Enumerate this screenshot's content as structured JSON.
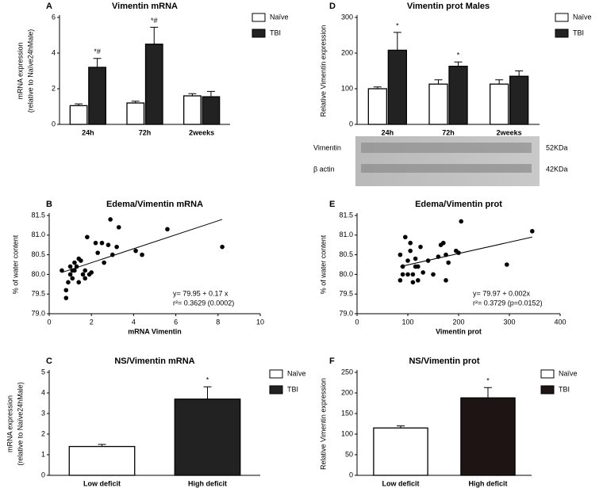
{
  "chart_data": [
    {
      "type": "bar",
      "label": "A",
      "title": "Vimentin mRNA",
      "ylabel": [
        "mRNA expression",
        "(relative to Naïve24hMale)"
      ],
      "categories": [
        "24h",
        "72h",
        "2weeks"
      ],
      "ylim": [
        0,
        6
      ],
      "yticks": [
        0,
        2,
        4,
        6
      ],
      "series": [
        {
          "name": "Naïve",
          "color": "#ffffff",
          "values": [
            1.05,
            1.2,
            1.6
          ],
          "errors": [
            0.1,
            0.1,
            0.12
          ],
          "significance": [
            null,
            null,
            null
          ]
        },
        {
          "name": "TBI",
          "color": "#222222",
          "values": [
            3.2,
            4.5,
            1.55
          ],
          "errors": [
            0.5,
            0.95,
            0.3
          ],
          "significance": [
            "*#",
            "*#",
            null
          ]
        }
      ]
    },
    {
      "type": "bar",
      "label": "D",
      "title": "Vimentin prot Males",
      "ylabel": [
        "Relative Vimentin expression"
      ],
      "categories": [
        "24h",
        "72h",
        "2weeks"
      ],
      "ylim": [
        0,
        300
      ],
      "yticks": [
        0,
        100,
        200,
        300
      ],
      "series": [
        {
          "name": "Naïve",
          "color": "#ffffff",
          "values": [
            100,
            113,
            113
          ],
          "errors": [
            5,
            12,
            12
          ],
          "significance": [
            null,
            null,
            null
          ]
        },
        {
          "name": "TBI",
          "color": "#222222",
          "values": [
            208,
            163,
            135
          ],
          "errors": [
            50,
            12,
            15
          ],
          "significance": [
            "*",
            "*",
            null
          ]
        }
      ],
      "blot": {
        "rows": [
          "Vimentin",
          "β actin"
        ],
        "sizes": [
          "52KDa",
          "42KDa"
        ]
      }
    },
    {
      "type": "scatter",
      "label": "B",
      "title": "Edema/Vimentin mRNA",
      "xlabel": "mRNA Vimentin",
      "ylabel": [
        "% of water content"
      ],
      "xlim": [
        0,
        10
      ],
      "xticks": [
        0,
        2,
        4,
        6,
        8,
        10
      ],
      "ylim": [
        79,
        81.5
      ],
      "yticks": [
        {
          "value": 79,
          "label": "79.0"
        },
        79.5,
        {
          "value": 80,
          "label": "80.0"
        },
        80.5,
        {
          "value": 81,
          "label": "81.0"
        },
        81.5
      ],
      "x": [
        0.6,
        0.8,
        0.8,
        0.9,
        1.0,
        1.0,
        1.1,
        1.1,
        1.2,
        1.2,
        1.3,
        1.4,
        1.4,
        1.5,
        1.6,
        1.7,
        1.7,
        1.8,
        1.9,
        2.0,
        2.2,
        2.3,
        2.5,
        2.6,
        2.8,
        2.9,
        3.0,
        3.2,
        3.3,
        4.1,
        4.4,
        5.6,
        8.2
      ],
      "y": [
        80.1,
        79.4,
        79.6,
        79.8,
        80.2,
        80.0,
        80.1,
        79.9,
        80.1,
        80.3,
        80.2,
        79.8,
        80.4,
        80.35,
        80.0,
        79.9,
        80.1,
        80.95,
        80.0,
        80.05,
        80.8,
        80.55,
        80.8,
        80.3,
        80.75,
        81.4,
        80.5,
        80.7,
        81.2,
        80.6,
        80.5,
        81.15,
        80.7
      ],
      "trend": {
        "x": [
          0.6,
          8.2
        ],
        "y": [
          80.05,
          81.4
        ]
      },
      "equation": "y= 79.95 + 0.17 x",
      "r2": "r²= 0.3629 (0.0002)"
    },
    {
      "type": "scatter",
      "label": "E",
      "title": "Edema/Vimentin prot",
      "xlabel": "Vimentin prot",
      "ylabel": [
        "% of water content"
      ],
      "xlim": [
        0,
        400
      ],
      "xticks": [
        0,
        100,
        200,
        300,
        400
      ],
      "ylim": [
        79,
        81.5
      ],
      "yticks": [
        {
          "value": 79,
          "label": "79.0"
        },
        79.5,
        {
          "value": 80,
          "label": "80.0"
        },
        80.5,
        {
          "value": 81,
          "label": "81.0"
        },
        81.5
      ],
      "x": [
        85,
        85,
        90,
        90,
        95,
        100,
        100,
        105,
        105,
        110,
        110,
        115,
        115,
        120,
        120,
        125,
        130,
        140,
        150,
        160,
        165,
        170,
        175,
        175,
        180,
        195,
        200,
        205,
        295,
        345
      ],
      "y": [
        79.85,
        80.5,
        80.0,
        80.2,
        80.95,
        80.0,
        80.35,
        80.6,
        80.8,
        79.8,
        80.0,
        80.2,
        80.4,
        79.85,
        80.2,
        80.7,
        80.05,
        80.35,
        80.0,
        80.45,
        80.75,
        80.8,
        79.85,
        80.5,
        80.3,
        80.6,
        80.55,
        81.35,
        80.25,
        81.1
      ],
      "trend": {
        "x": [
          85,
          345
        ],
        "y": [
          80.2,
          80.95
        ]
      },
      "equation": "y= 79.97 + 0.002x",
      "r2": "r²= 0.3729 (p=0.0152)"
    },
    {
      "type": "bar",
      "label": "C",
      "title": "NS/Vimentin mRNA",
      "ylabel": [
        "mRNA expression",
        "(relative to Naïve24hMale)"
      ],
      "categories": [
        "Low deficit",
        "High deficit"
      ],
      "ylim": [
        0,
        5
      ],
      "yticks": [
        0,
        1,
        2,
        3,
        4,
        5
      ],
      "series": [
        {
          "name": "Naïve",
          "color": "#ffffff",
          "values": [
            1.4,
            null
          ],
          "errors": [
            0.1,
            null
          ],
          "significance": [
            null,
            null
          ]
        },
        {
          "name": "TBI",
          "color": "#222222",
          "values": [
            null,
            3.7
          ],
          "errors": [
            null,
            0.6
          ],
          "significance": [
            null,
            "*"
          ]
        }
      ]
    },
    {
      "type": "bar",
      "label": "F",
      "title": "NS/Vimentin prot",
      "ylabel": [
        "Relative Vimentin expression"
      ],
      "categories": [
        "Low deficit",
        "High deficit"
      ],
      "ylim": [
        0,
        250
      ],
      "yticks": [
        0,
        50,
        100,
        150,
        200,
        250
      ],
      "series": [
        {
          "name": "Naïve",
          "color": "#ffffff",
          "values": [
            115,
            null
          ],
          "errors": [
            5,
            null
          ],
          "significance": [
            null,
            null
          ]
        },
        {
          "name": "TBI",
          "color": "#1e1414",
          "values": [
            null,
            188
          ],
          "errors": [
            null,
            25
          ],
          "significance": [
            null,
            "*"
          ]
        }
      ]
    }
  ]
}
